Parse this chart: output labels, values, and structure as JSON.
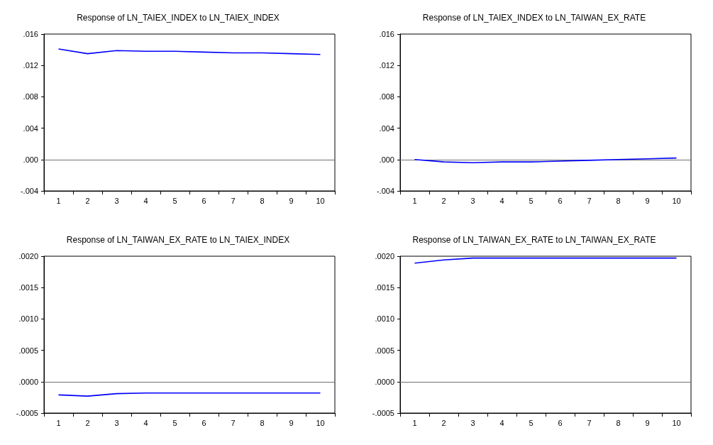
{
  "chart_data": [
    {
      "type": "line",
      "title": "Response of LN_TAIEX_INDEX to LN_TAIEX_INDEX",
      "categories": [
        "1",
        "2",
        "3",
        "4",
        "5",
        "6",
        "7",
        "8",
        "9",
        "10"
      ],
      "series": [
        {
          "color": "#0000ff",
          "values": [
            0.0141,
            0.0135,
            0.0139,
            0.0138,
            0.0138,
            0.0137,
            0.0136,
            0.0136,
            0.0135,
            0.0134
          ]
        }
      ],
      "ylim": [
        -0.004,
        0.016
      ],
      "yticks": [
        {
          "value": -0.004,
          "label": "-.004"
        },
        {
          "value": 0,
          "label": ".000"
        },
        {
          "value": 0.004,
          "label": ".004"
        },
        {
          "value": 0.008,
          "label": ".008"
        },
        {
          "value": 0.012,
          "label": ".012"
        },
        {
          "value": 0.016,
          "label": ".016"
        }
      ],
      "ref_lines": [
        {
          "axis": "y",
          "value": 0,
          "color": "#707070"
        }
      ]
    },
    {
      "type": "line",
      "title": "Response of LN_TAIEX_INDEX to LN_TAIWAN_EX_RATE",
      "categories": [
        "1",
        "2",
        "3",
        "4",
        "5",
        "6",
        "7",
        "8",
        "9",
        "10"
      ],
      "series": [
        {
          "color": "#0000ff",
          "values": [
            0,
            -0.0003,
            -0.0004,
            -0.0003,
            -0.0003,
            -0.0002,
            -0.0001,
            0,
            0.0001,
            0.0002
          ]
        }
      ],
      "ylim": [
        -0.004,
        0.016
      ],
      "yticks": [
        {
          "value": -0.004,
          "label": "-.004"
        },
        {
          "value": 0,
          "label": ".000"
        },
        {
          "value": 0.004,
          "label": ".004"
        },
        {
          "value": 0.008,
          "label": ".008"
        },
        {
          "value": 0.012,
          "label": ".012"
        },
        {
          "value": 0.016,
          "label": ".016"
        }
      ],
      "ref_lines": [
        {
          "axis": "y",
          "value": 0,
          "color": "#707070"
        }
      ]
    },
    {
      "type": "line",
      "title": "Response of LN_TAIWAN_EX_RATE to LN_TAIEX_INDEX",
      "categories": [
        "1",
        "2",
        "3",
        "4",
        "5",
        "6",
        "7",
        "8",
        "9",
        "10"
      ],
      "series": [
        {
          "color": "#0000ff",
          "values": [
            -0.00021,
            -0.00023,
            -0.00019,
            -0.00018,
            -0.00018,
            -0.00018,
            -0.00018,
            -0.00018,
            -0.00018,
            -0.00018
          ]
        }
      ],
      "ylim": [
        -0.0005,
        0.002
      ],
      "yticks": [
        {
          "value": -0.0005,
          "label": "-.0005"
        },
        {
          "value": 0,
          "label": ".0000"
        },
        {
          "value": 0.0005,
          "label": ".0005"
        },
        {
          "value": 0.001,
          "label": ".0010"
        },
        {
          "value": 0.0015,
          "label": ".0015"
        },
        {
          "value": 0.002,
          "label": ".0020"
        }
      ],
      "ref_lines": [
        {
          "axis": "y",
          "value": 0,
          "color": "#707070"
        }
      ]
    },
    {
      "type": "line",
      "title": "Response of LN_TAIWAN_EX_RATE to LN_TAIWAN_EX_RATE",
      "categories": [
        "1",
        "2",
        "3",
        "4",
        "5",
        "6",
        "7",
        "8",
        "9",
        "10"
      ],
      "series": [
        {
          "color": "#0000ff",
          "values": [
            0.00189,
            0.00194,
            0.00197,
            0.00197,
            0.00197,
            0.00197,
            0.00197,
            0.00197,
            0.00197,
            0.00197
          ]
        }
      ],
      "ylim": [
        -0.0005,
        0.002
      ],
      "yticks": [
        {
          "value": -0.0005,
          "label": "-.0005"
        },
        {
          "value": 0,
          "label": ".0000"
        },
        {
          "value": 0.0005,
          "label": ".0005"
        },
        {
          "value": 0.001,
          "label": ".0010"
        },
        {
          "value": 0.0015,
          "label": ".0015"
        },
        {
          "value": 0.002,
          "label": ".0020"
        }
      ],
      "ref_lines": [
        {
          "axis": "y",
          "value": 0,
          "color": "#707070"
        }
      ]
    }
  ]
}
